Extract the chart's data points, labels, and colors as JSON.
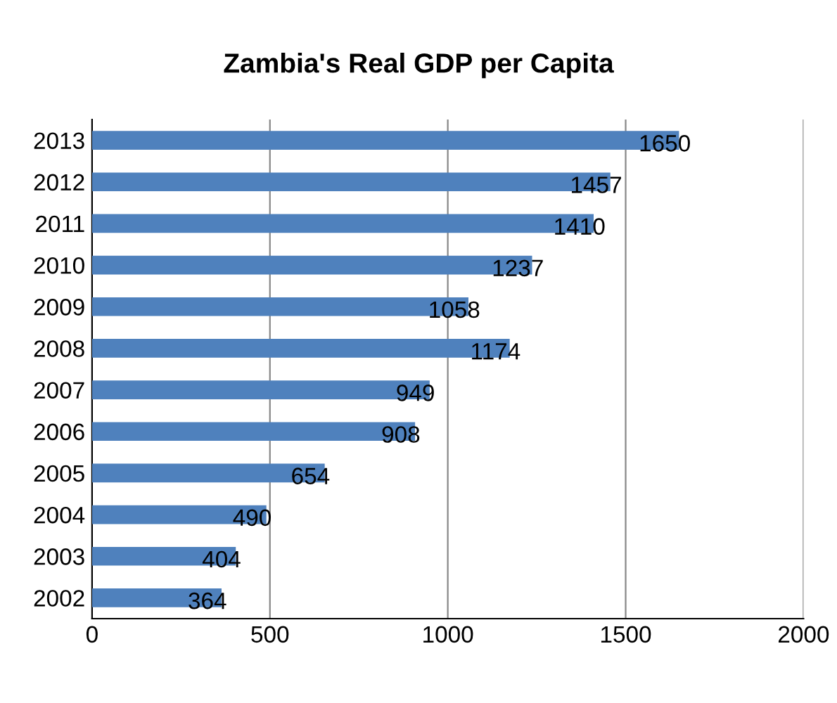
{
  "chart_data": {
    "type": "bar",
    "orientation": "horizontal",
    "title": "Zambia's Real GDP per Capita",
    "categories": [
      "2013",
      "2012",
      "2011",
      "2010",
      "2009",
      "2008",
      "2007",
      "2006",
      "2005",
      "2004",
      "2003",
      "2002"
    ],
    "values": [
      1650,
      1457,
      1410,
      1237,
      1058,
      1174,
      949,
      908,
      654,
      490,
      404,
      364
    ],
    "color": "#4f81bd",
    "xlim": [
      0,
      2000
    ],
    "xticks": [
      0,
      500,
      1000,
      1500,
      2000
    ],
    "grid": "x",
    "data_labels": true
  }
}
